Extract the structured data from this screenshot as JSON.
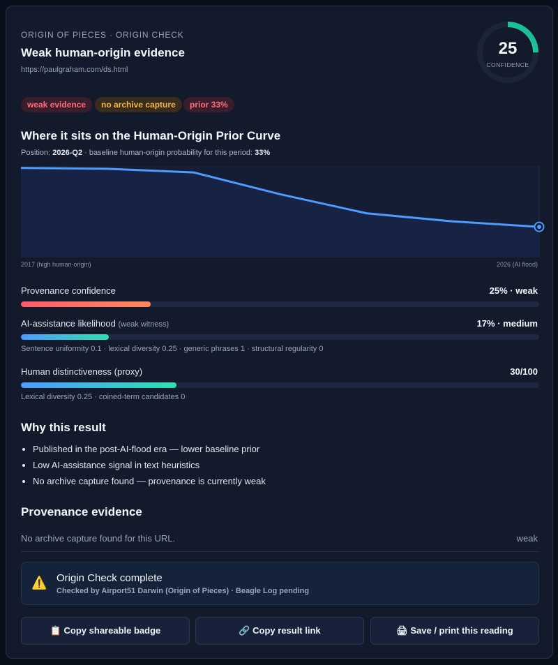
{
  "header": {
    "eyebrow": "ORIGIN OF PIECES · ORIGIN CHECK",
    "title": "Weak human-origin evidence",
    "url": "https://paulgraham.com/ds.html"
  },
  "gauge": {
    "value": 25,
    "max": 100,
    "label": "CONFIDENCE"
  },
  "tags": [
    "weak evidence",
    "no archive capture",
    "prior 33%"
  ],
  "curve": {
    "title": "Where it sits on the Human-Origin Prior Curve",
    "position_label": "Position:",
    "position": "2026-Q2",
    "baseline_text": "· baseline human-origin probability for this period:",
    "baseline": "33%",
    "values": [
      98,
      97,
      93,
      69,
      48,
      39,
      33
    ],
    "ylim": [
      0,
      100
    ],
    "start_label": "2017 (high human-origin)",
    "end_label": "2026 (AI flood)"
  },
  "meters": [
    {
      "label": "Provenance confidence",
      "value": 25,
      "max": 100,
      "value_text": "25% · weak"
    },
    {
      "label": "AI-assistance likelihood",
      "note": "(weak witness)",
      "value": 17,
      "max": 100,
      "value_text": "17% · medium",
      "detail": "Sentence uniformity 0.1 · lexical diversity 0.25 · generic phrases 1 · structural regularity 0"
    },
    {
      "label": "Human distinctiveness (proxy)",
      "value": 30,
      "max": 100,
      "value_text": "30/100",
      "detail": "Lexical diversity 0.25 · coined-term candidates 0"
    }
  ],
  "why": {
    "title": "Why this result",
    "items": [
      "Published in the post-AI-flood era — lower baseline prior",
      "Low AI-assistance signal in text heuristics",
      "No archive capture found — provenance is currently weak"
    ]
  },
  "evidence": {
    "title": "Provenance evidence",
    "text": "No archive capture found for this URL.",
    "status": "weak"
  },
  "status": {
    "icon": "⚠️",
    "title": "Origin Check complete",
    "subtitle": "Checked by Airport51 Darwin (Origin of Pieces) · Beagle Log pending"
  },
  "buttons": [
    "📋 Copy shareable badge",
    "🔗 Copy result link",
    "🖨 Save / print this reading"
  ]
}
